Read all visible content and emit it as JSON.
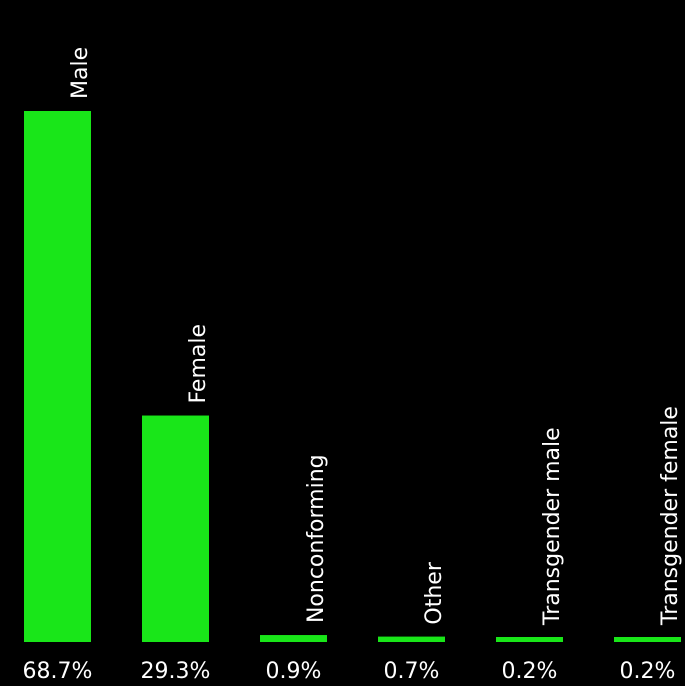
{
  "chart_data": {
    "type": "bar",
    "orientation": "vertical",
    "categories": [
      "Male",
      "Female",
      "Nonconforming",
      "Other",
      "Transgender male",
      "Transgender female"
    ],
    "values": [
      68.7,
      29.3,
      0.9,
      0.7,
      0.2,
      0.2
    ],
    "value_labels": [
      "68.7%",
      "29.3%",
      "0.9%",
      "0.7%",
      "0.2%",
      "0.2%"
    ],
    "unit": "%",
    "ylim": [
      0,
      68.7
    ],
    "grid": false,
    "legend": "none",
    "bar_color": "#19e619",
    "background_color": "#000000",
    "text_color": "#ffffff"
  }
}
